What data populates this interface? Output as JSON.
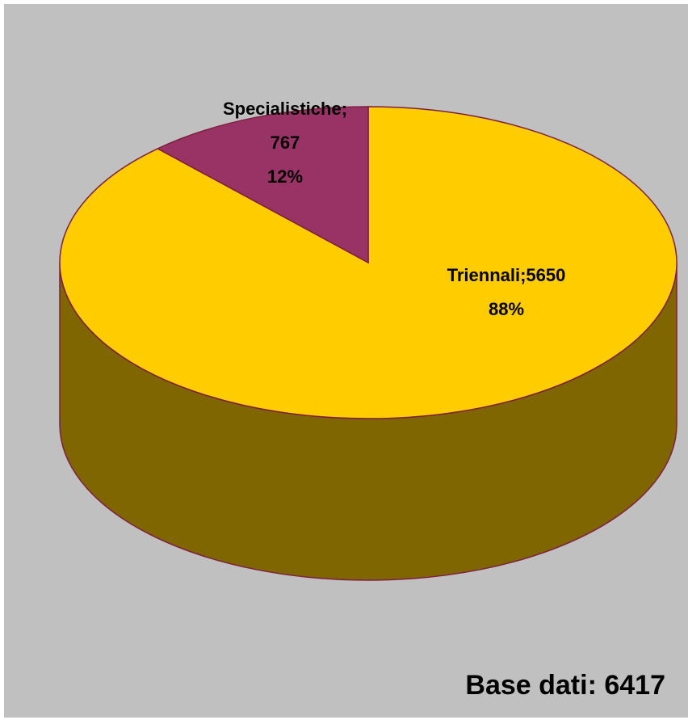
{
  "chart_data": {
    "type": "pie",
    "style": "3d",
    "legend": "none",
    "series": [
      {
        "slices": [
          {
            "label": "Triennali",
            "value": 5650,
            "percent": "88%",
            "label_lines": [
              "Triennali;5650",
              "88%"
            ],
            "color": "#ffcc00",
            "side_color": "#806600"
          },
          {
            "label": "Specialistiche",
            "value": 767,
            "percent": "12%",
            "label_lines": [
              "Specialistiche;",
              "767",
              "12%"
            ],
            "color": "#993366",
            "side_color": "#4d1a33"
          }
        ]
      }
    ],
    "outline_color": "#7f1f3f",
    "background_color": "#c0c0c0"
  },
  "footer": {
    "base_note": "Base dati: 6417"
  }
}
